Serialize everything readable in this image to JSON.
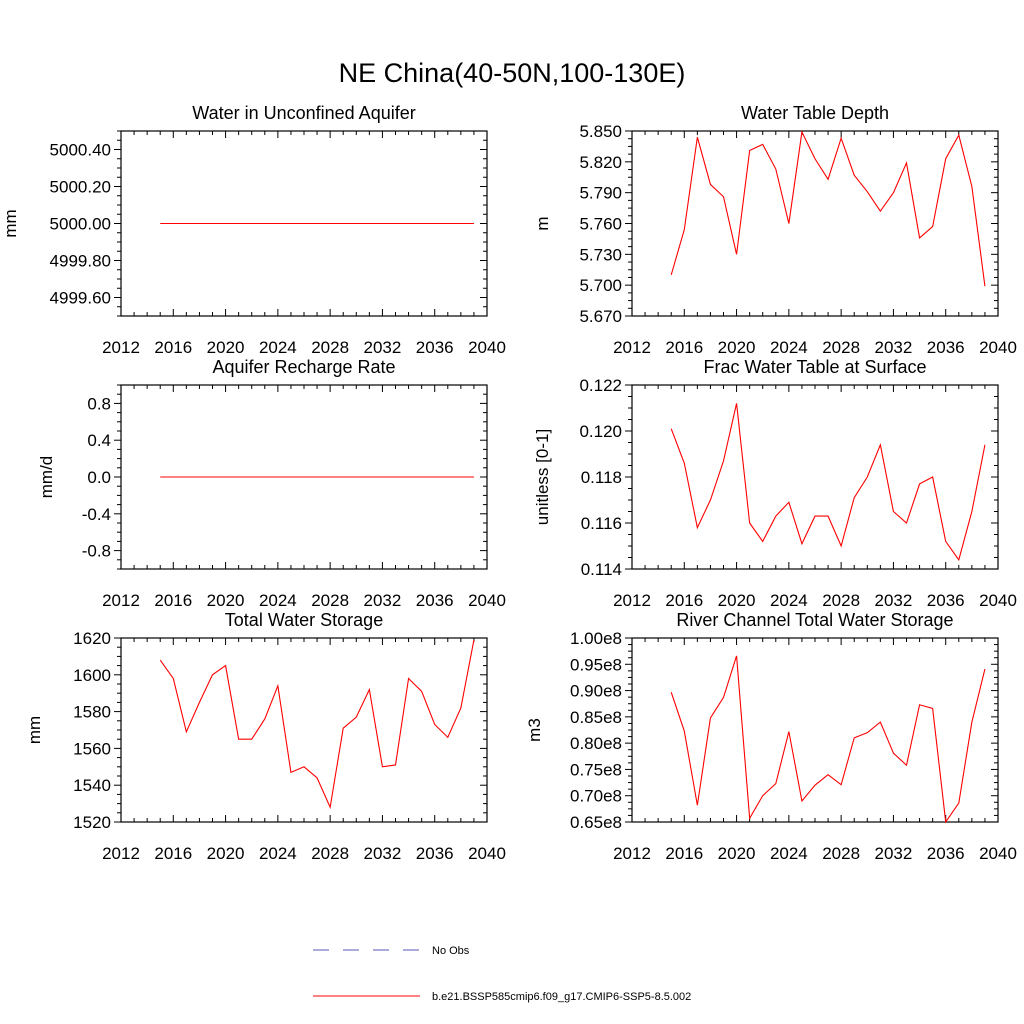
{
  "figure": {
    "title": "NE China(40-50N,100-130E)"
  },
  "legend": [
    {
      "label": "No Obs",
      "color": "#5a5ab4",
      "dash": "dashed"
    },
    {
      "label": "b.e21.BSSP585cmip6.f09_g17.CMIP6-SSP5-8.5.002",
      "color": "#ff0000",
      "dash": "solid"
    }
  ],
  "chart_data": [
    {
      "type": "line",
      "title": "Water in Unconfined Aquifer",
      "ylabel": "mm",
      "xlim": [
        2012,
        2040
      ],
      "ylim": [
        4999.5,
        5000.5
      ],
      "xticks": [
        "2012",
        "2016",
        "2020",
        "2024",
        "2028",
        "2032",
        "2036",
        "2040"
      ],
      "xtick_values": [
        2012,
        2016,
        2020,
        2024,
        2028,
        2032,
        2036,
        2040
      ],
      "yticks": [
        "4999.60",
        "4999.80",
        "5000.00",
        "5000.20",
        "5000.40"
      ],
      "ytick_values": [
        4999.6,
        4999.8,
        5000.0,
        5000.2,
        5000.4
      ],
      "x": [
        2015,
        2016,
        2017,
        2018,
        2019,
        2020,
        2021,
        2022,
        2023,
        2024,
        2025,
        2026,
        2027,
        2028,
        2029,
        2030,
        2031,
        2032,
        2033,
        2034,
        2035,
        2036,
        2037,
        2038,
        2039
      ],
      "series": [
        {
          "values": [
            5000,
            5000,
            5000,
            5000,
            5000,
            5000,
            5000,
            5000,
            5000,
            5000,
            5000,
            5000,
            5000,
            5000,
            5000,
            5000,
            5000,
            5000,
            5000,
            5000,
            5000,
            5000,
            5000,
            5000,
            5000
          ]
        }
      ]
    },
    {
      "type": "line",
      "title": "Water Table Depth",
      "ylabel": "m",
      "xlim": [
        2012,
        2040
      ],
      "ylim": [
        5.67,
        5.85
      ],
      "xticks": [
        "2012",
        "2016",
        "2020",
        "2024",
        "2028",
        "2032",
        "2036",
        "2040"
      ],
      "xtick_values": [
        2012,
        2016,
        2020,
        2024,
        2028,
        2032,
        2036,
        2040
      ],
      "yticks": [
        "5.670",
        "5.700",
        "5.730",
        "5.760",
        "5.790",
        "5.820",
        "5.850"
      ],
      "ytick_values": [
        5.67,
        5.7,
        5.73,
        5.76,
        5.79,
        5.82,
        5.85
      ],
      "x": [
        2015,
        2016,
        2017,
        2018,
        2019,
        2020,
        2021,
        2022,
        2023,
        2024,
        2025,
        2026,
        2027,
        2028,
        2029,
        2030,
        2031,
        2032,
        2033,
        2034,
        2035,
        2036,
        2037,
        2038,
        2039
      ],
      "series": [
        {
          "values": [
            5.71,
            5.754,
            5.844,
            5.798,
            5.786,
            5.73,
            5.831,
            5.837,
            5.813,
            5.76,
            5.849,
            5.823,
            5.803,
            5.843,
            5.807,
            5.791,
            5.772,
            5.79,
            5.819,
            5.746,
            5.757,
            5.823,
            5.846,
            5.796,
            5.699
          ]
        }
      ]
    },
    {
      "type": "line",
      "title": "Aquifer Recharge Rate",
      "ylabel": "mm/d",
      "xlim": [
        2012,
        2040
      ],
      "ylim": [
        -1.0,
        1.0
      ],
      "xticks": [
        "2012",
        "2016",
        "2020",
        "2024",
        "2028",
        "2032",
        "2036",
        "2040"
      ],
      "xtick_values": [
        2012,
        2016,
        2020,
        2024,
        2028,
        2032,
        2036,
        2040
      ],
      "yticks": [
        "-0.8",
        "-0.4",
        "0.0",
        "0.4",
        "0.8"
      ],
      "ytick_values": [
        -0.8,
        -0.4,
        0.0,
        0.4,
        0.8
      ],
      "x": [
        2015,
        2016,
        2017,
        2018,
        2019,
        2020,
        2021,
        2022,
        2023,
        2024,
        2025,
        2026,
        2027,
        2028,
        2029,
        2030,
        2031,
        2032,
        2033,
        2034,
        2035,
        2036,
        2037,
        2038,
        2039
      ],
      "series": [
        {
          "values": [
            0,
            0,
            0,
            0,
            0,
            0,
            0,
            0,
            0,
            0,
            0,
            0,
            0,
            0,
            0,
            0,
            0,
            0,
            0,
            0,
            0,
            0,
            0,
            0,
            0
          ]
        }
      ]
    },
    {
      "type": "line",
      "title": "Frac Water Table at Surface",
      "ylabel": "unitless [0-1]",
      "xlim": [
        2012,
        2040
      ],
      "ylim": [
        0.114,
        0.122
      ],
      "xticks": [
        "2012",
        "2016",
        "2020",
        "2024",
        "2028",
        "2032",
        "2036",
        "2040"
      ],
      "xtick_values": [
        2012,
        2016,
        2020,
        2024,
        2028,
        2032,
        2036,
        2040
      ],
      "yticks": [
        "0.114",
        "0.116",
        "0.118",
        "0.120",
        "0.122"
      ],
      "ytick_values": [
        0.114,
        0.116,
        0.118,
        0.12,
        0.122
      ],
      "x": [
        2015,
        2016,
        2017,
        2018,
        2019,
        2020,
        2021,
        2022,
        2023,
        2024,
        2025,
        2026,
        2027,
        2028,
        2029,
        2030,
        2031,
        2032,
        2033,
        2034,
        2035,
        2036,
        2037,
        2038,
        2039
      ],
      "series": [
        {
          "values": [
            0.1201,
            0.1186,
            0.1158,
            0.117,
            0.1187,
            0.1212,
            0.116,
            0.1152,
            0.1163,
            0.1169,
            0.1151,
            0.1163,
            0.1163,
            0.115,
            0.1171,
            0.118,
            0.1194,
            0.1165,
            0.116,
            0.1177,
            0.118,
            0.1152,
            0.1144,
            0.1165,
            0.1194
          ]
        }
      ]
    },
    {
      "type": "line",
      "title": "Total Water Storage",
      "ylabel": "mm",
      "xlim": [
        2012,
        2040
      ],
      "ylim": [
        1520,
        1620
      ],
      "xticks": [
        "2012",
        "2016",
        "2020",
        "2024",
        "2028",
        "2032",
        "2036",
        "2040"
      ],
      "xtick_values": [
        2012,
        2016,
        2020,
        2024,
        2028,
        2032,
        2036,
        2040
      ],
      "yticks": [
        "1520",
        "1540",
        "1560",
        "1580",
        "1600",
        "1620"
      ],
      "ytick_values": [
        1520,
        1540,
        1560,
        1580,
        1600,
        1620
      ],
      "x": [
        2015,
        2016,
        2017,
        2018,
        2019,
        2020,
        2021,
        2022,
        2023,
        2024,
        2025,
        2026,
        2027,
        2028,
        2029,
        2030,
        2031,
        2032,
        2033,
        2034,
        2035,
        2036,
        2037,
        2038,
        2039
      ],
      "series": [
        {
          "values": [
            1608,
            1598,
            1569,
            1585,
            1600,
            1605,
            1565,
            1565,
            1576,
            1594,
            1547,
            1550,
            1544,
            1528,
            1571,
            1577,
            1592,
            1550,
            1551,
            1598,
            1591,
            1573,
            1566,
            1582,
            1619
          ]
        }
      ]
    },
    {
      "type": "line",
      "title": "River Channel Total Water Storage",
      "ylabel": "m3",
      "xlim": [
        2012,
        2040
      ],
      "ylim": [
        0.65,
        1.0
      ],
      "y_unit_suffix": "e8",
      "xticks": [
        "2012",
        "2016",
        "2020",
        "2024",
        "2028",
        "2032",
        "2036",
        "2040"
      ],
      "xtick_values": [
        2012,
        2016,
        2020,
        2024,
        2028,
        2032,
        2036,
        2040
      ],
      "yticks": [
        "0.65e8",
        "0.70e8",
        "0.75e8",
        "0.80e8",
        "0.85e8",
        "0.90e8",
        "0.95e8",
        "1.00e8"
      ],
      "ytick_values": [
        0.65,
        0.7,
        0.75,
        0.8,
        0.85,
        0.9,
        0.95,
        1.0
      ],
      "x": [
        2015,
        2016,
        2017,
        2018,
        2019,
        2020,
        2021,
        2022,
        2023,
        2024,
        2025,
        2026,
        2027,
        2028,
        2029,
        2030,
        2031,
        2032,
        2033,
        2034,
        2035,
        2036,
        2037,
        2038,
        2039
      ],
      "series": [
        {
          "values": [
            0.897,
            0.823,
            0.682,
            0.848,
            0.887,
            0.966,
            0.657,
            0.7,
            0.723,
            0.822,
            0.69,
            0.72,
            0.74,
            0.721,
            0.81,
            0.82,
            0.84,
            0.781,
            0.758,
            0.873,
            0.866,
            0.65,
            0.686,
            0.84,
            0.941
          ]
        }
      ]
    }
  ]
}
